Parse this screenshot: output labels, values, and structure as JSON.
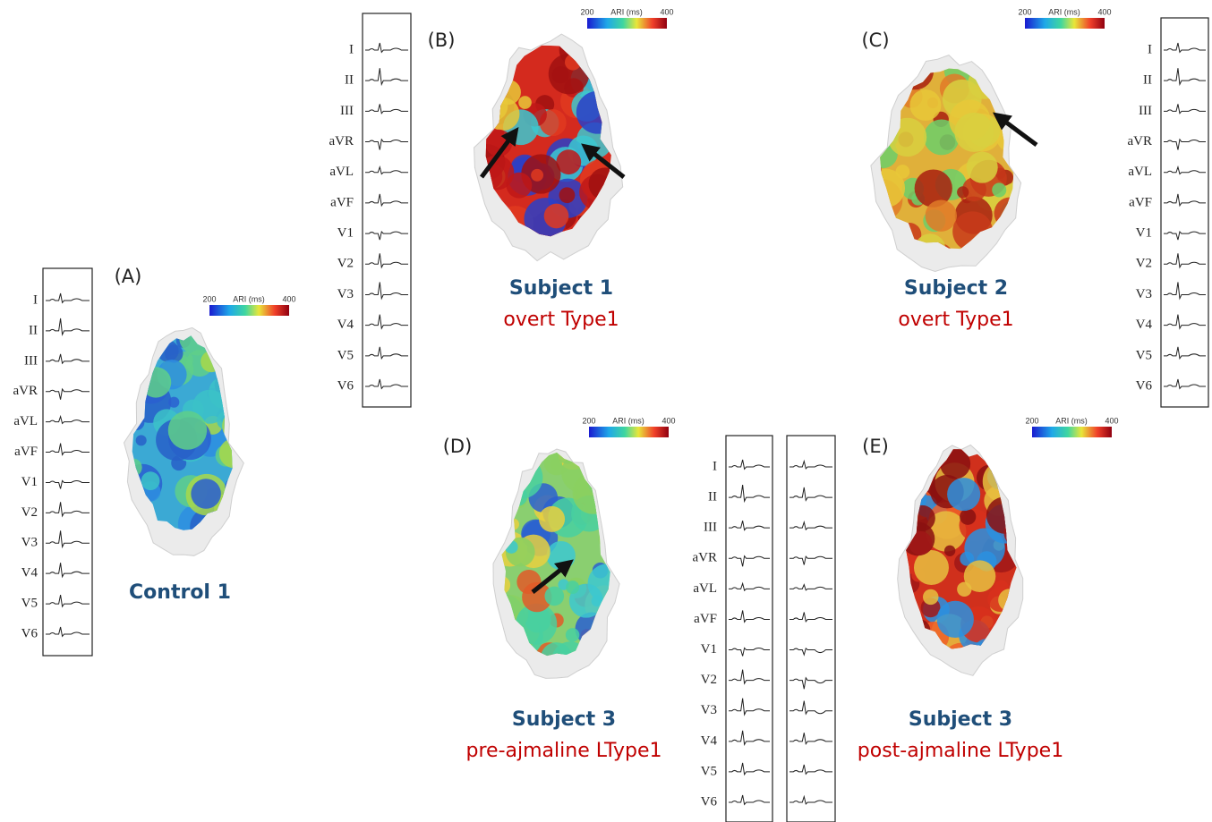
{
  "leads": [
    "I",
    "II",
    "III",
    "aVR",
    "aVL",
    "aVF",
    "V1",
    "V2",
    "V3",
    "V4",
    "V5",
    "V6"
  ],
  "panels": [
    {
      "label": "(A)",
      "colorbar": {
        "min": 200,
        "title": "ARI (ms)",
        "max": 400
      },
      "subject": "Control 1"
    },
    {
      "label": "(B)",
      "colorbar": {
        "min": 200,
        "title": "ARI (ms)",
        "max": 400
      },
      "subject": "Subject 1",
      "condition": "overt Type1"
    },
    {
      "label": "(C)",
      "colorbar": {
        "min": 200,
        "title": "ARI (ms)",
        "max": 400
      },
      "subject": "Subject 2",
      "condition": "overt Type1"
    },
    {
      "label": "(D)",
      "colorbar": {
        "min": 200,
        "title": "ARI (ms)",
        "max": 400
      },
      "subject": "Subject 3",
      "condition": "pre-ajmaline LType1"
    },
    {
      "label": "(E)",
      "colorbar": {
        "min": 200,
        "title": "ARI (ms)",
        "max": 400
      },
      "subject": "Subject 3",
      "condition": "post-ajmaline LType1"
    }
  ]
}
